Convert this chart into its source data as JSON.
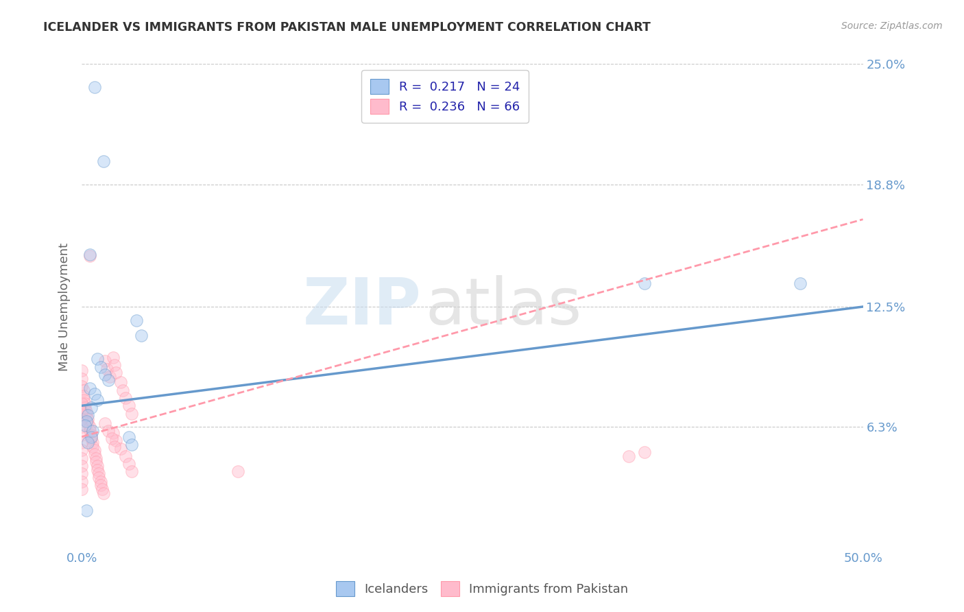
{
  "title": "ICELANDER VS IMMIGRANTS FROM PAKISTAN MALE UNEMPLOYMENT CORRELATION CHART",
  "source": "Source: ZipAtlas.com",
  "ylabel": "Male Unemployment",
  "xlim": [
    0.0,
    0.5
  ],
  "ylim": [
    0.0,
    0.25
  ],
  "ytick_labels": [
    "6.3%",
    "12.5%",
    "18.8%",
    "25.0%"
  ],
  "ytick_values": [
    0.063,
    0.125,
    0.188,
    0.25
  ],
  "xtick_labels": [
    "0.0%",
    "50.0%"
  ],
  "xtick_values": [
    0.0,
    0.5
  ],
  "icelanders_scatter": [
    [
      0.008,
      0.238
    ],
    [
      0.014,
      0.2
    ],
    [
      0.005,
      0.152
    ],
    [
      0.035,
      0.118
    ],
    [
      0.038,
      0.11
    ],
    [
      0.01,
      0.098
    ],
    [
      0.012,
      0.094
    ],
    [
      0.015,
      0.09
    ],
    [
      0.017,
      0.087
    ],
    [
      0.005,
      0.083
    ],
    [
      0.008,
      0.08
    ],
    [
      0.01,
      0.077
    ],
    [
      0.006,
      0.073
    ],
    [
      0.004,
      0.069
    ],
    [
      0.003,
      0.066
    ],
    [
      0.002,
      0.064
    ],
    [
      0.007,
      0.061
    ],
    [
      0.006,
      0.058
    ],
    [
      0.004,
      0.055
    ],
    [
      0.03,
      0.058
    ],
    [
      0.032,
      0.054
    ],
    [
      0.003,
      0.02
    ],
    [
      0.36,
      0.137
    ],
    [
      0.46,
      0.137
    ]
  ],
  "pakistan_scatter": [
    [
      0.005,
      0.151
    ],
    [
      0.0,
      0.092
    ],
    [
      0.0,
      0.088
    ],
    [
      0.0,
      0.084
    ],
    [
      0.001,
      0.082
    ],
    [
      0.001,
      0.079
    ],
    [
      0.001,
      0.077
    ],
    [
      0.002,
      0.075
    ],
    [
      0.002,
      0.073
    ],
    [
      0.003,
      0.071
    ],
    [
      0.003,
      0.069
    ],
    [
      0.004,
      0.067
    ],
    [
      0.004,
      0.065
    ],
    [
      0.005,
      0.063
    ],
    [
      0.005,
      0.061
    ],
    [
      0.006,
      0.059
    ],
    [
      0.006,
      0.057
    ],
    [
      0.007,
      0.055
    ],
    [
      0.007,
      0.053
    ],
    [
      0.008,
      0.051
    ],
    [
      0.008,
      0.049
    ],
    [
      0.009,
      0.047
    ],
    [
      0.009,
      0.045
    ],
    [
      0.01,
      0.043
    ],
    [
      0.01,
      0.041
    ],
    [
      0.011,
      0.039
    ],
    [
      0.011,
      0.037
    ],
    [
      0.012,
      0.035
    ],
    [
      0.012,
      0.033
    ],
    [
      0.013,
      0.031
    ],
    [
      0.014,
      0.029
    ],
    [
      0.015,
      0.097
    ],
    [
      0.016,
      0.093
    ],
    [
      0.018,
      0.089
    ],
    [
      0.02,
      0.099
    ],
    [
      0.021,
      0.095
    ],
    [
      0.022,
      0.091
    ],
    [
      0.025,
      0.086
    ],
    [
      0.026,
      0.082
    ],
    [
      0.028,
      0.078
    ],
    [
      0.03,
      0.074
    ],
    [
      0.032,
      0.07
    ],
    [
      0.02,
      0.06
    ],
    [
      0.022,
      0.056
    ],
    [
      0.025,
      0.052
    ],
    [
      0.028,
      0.048
    ],
    [
      0.03,
      0.044
    ],
    [
      0.032,
      0.04
    ],
    [
      0.015,
      0.065
    ],
    [
      0.017,
      0.061
    ],
    [
      0.019,
      0.057
    ],
    [
      0.021,
      0.053
    ],
    [
      0.0,
      0.075
    ],
    [
      0.0,
      0.071
    ],
    [
      0.0,
      0.067
    ],
    [
      0.0,
      0.063
    ],
    [
      0.0,
      0.059
    ],
    [
      0.0,
      0.055
    ],
    [
      0.0,
      0.051
    ],
    [
      0.0,
      0.047
    ],
    [
      0.0,
      0.043
    ],
    [
      0.0,
      0.039
    ],
    [
      0.0,
      0.035
    ],
    [
      0.0,
      0.031
    ],
    [
      0.35,
      0.048
    ],
    [
      0.36,
      0.05
    ],
    [
      0.1,
      0.04
    ]
  ],
  "iceland_line": {
    "x0": 0.0,
    "y0": 0.074,
    "x1": 0.5,
    "y1": 0.125
  },
  "pakistan_line": {
    "x0": 0.0,
    "y0": 0.058,
    "x1": 0.5,
    "y1": 0.17
  },
  "iceland_color": "#6699cc",
  "pakistan_color": "#ff99aa",
  "iceland_fill": "#a8c8f0",
  "pakistan_fill": "#ffbbcc",
  "scatter_size": 160,
  "scatter_alpha": 0.45,
  "background_color": "#ffffff",
  "grid_color": "#c8c8c8",
  "title_color": "#333333",
  "axis_label_color": "#666666",
  "tick_color": "#6699cc",
  "legend_text_color": "#2222aa",
  "watermark_zip_color": "#c8ddf0",
  "watermark_atlas_color": "#d0d0d0"
}
